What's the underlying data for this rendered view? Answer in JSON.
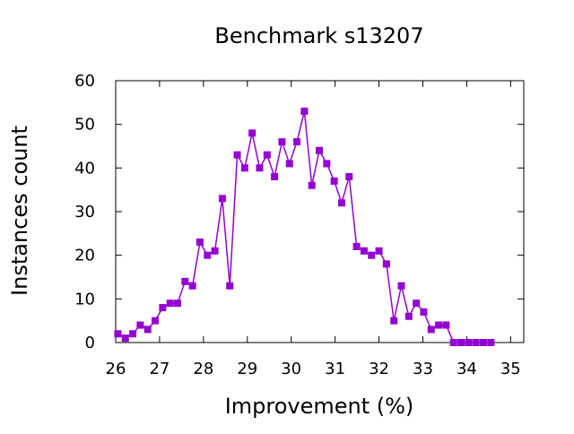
{
  "chart_data": {
    "type": "line",
    "title": "Benchmark s13207",
    "xlabel": "Improvement (%)",
    "ylabel": "Instances count",
    "xlim": [
      26,
      35.3
    ],
    "ylim": [
      0,
      60
    ],
    "xticks": [
      26,
      27,
      28,
      29,
      30,
      31,
      32,
      33,
      34,
      35
    ],
    "yticks": [
      0,
      10,
      20,
      30,
      40,
      50,
      60
    ],
    "grid": false,
    "legend": "none",
    "series_color": "#9400d3",
    "series": [
      {
        "marker": "square",
        "x": [
          26.05,
          26.22,
          26.39,
          26.56,
          26.73,
          26.9,
          27.07,
          27.24,
          27.41,
          27.58,
          27.75,
          27.92,
          28.09,
          28.26,
          28.43,
          28.6,
          28.77,
          28.94,
          29.11,
          29.28,
          29.45,
          29.62,
          29.79,
          29.96,
          30.13,
          30.3,
          30.47,
          30.64,
          30.81,
          30.98,
          31.15,
          31.32,
          31.49,
          31.66,
          31.83,
          32.0,
          32.17,
          32.34,
          32.51,
          32.68,
          32.85,
          33.02,
          33.19,
          33.36,
          33.53,
          33.7,
          33.87,
          34.04,
          34.21,
          34.38,
          34.55
        ],
        "values": [
          2,
          1,
          2,
          4,
          3,
          5,
          8,
          9,
          9,
          14,
          13,
          23,
          20,
          21,
          33,
          13,
          43,
          40,
          48,
          40,
          43,
          38,
          46,
          41,
          46,
          53,
          36,
          44,
          41,
          37,
          32,
          38,
          22,
          21,
          20,
          21,
          18,
          5,
          13,
          6,
          9,
          7,
          3,
          4,
          4,
          0,
          0,
          0,
          0,
          0,
          0
        ]
      }
    ]
  }
}
